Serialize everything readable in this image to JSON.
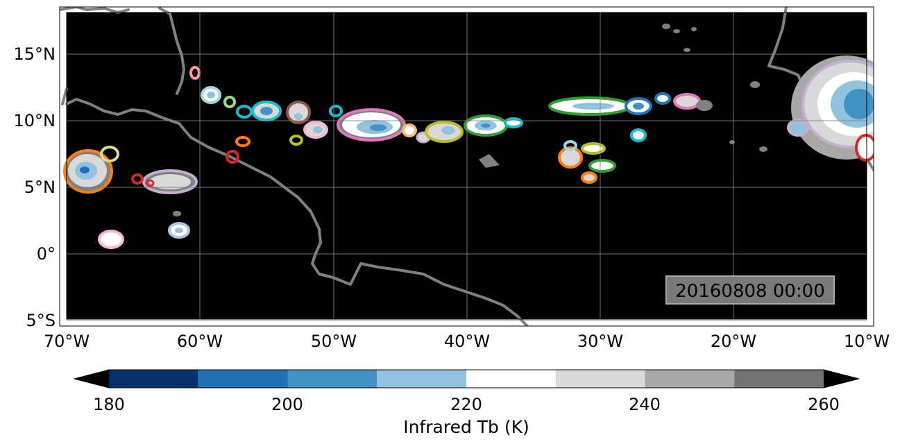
{
  "map": {
    "timestamp": "20160808 00:00",
    "lon_ticks": [
      "70°W",
      "60°W",
      "50°W",
      "40°W",
      "30°W",
      "20°W",
      "10°W"
    ],
    "lat_ticks": [
      "15°N",
      "10°N",
      "5°N",
      "0°",
      "5°S"
    ],
    "background_color": "#000000",
    "coast_color": "#808080",
    "grid": true
  },
  "colorbar": {
    "label": "Infrared Tb (K)",
    "ticks": [
      "180",
      "200",
      "220",
      "240",
      "260"
    ],
    "levels": [
      180,
      190,
      200,
      210,
      220,
      230,
      240,
      250,
      260
    ],
    "colors": [
      "#08306b",
      "#2171b5",
      "#4292c6",
      "#92c2de",
      "#ffffff",
      "#d9d9d9",
      "#a8a8a8",
      "#737373"
    ],
    "under_color": "#000000",
    "over_color": "#000000"
  },
  "tracked_systems": {
    "outline_colors": [
      "#1f77b4",
      "#ff7f0e",
      "#2ca02c",
      "#d62728",
      "#9467bd",
      "#8c564b",
      "#e377c2",
      "#bcbd22",
      "#17becf",
      "#aec7e8",
      "#ffbb78",
      "#98df8a",
      "#ff9896",
      "#c5b0d5",
      "#dbdb8d",
      "#f7b6d2"
    ]
  }
}
